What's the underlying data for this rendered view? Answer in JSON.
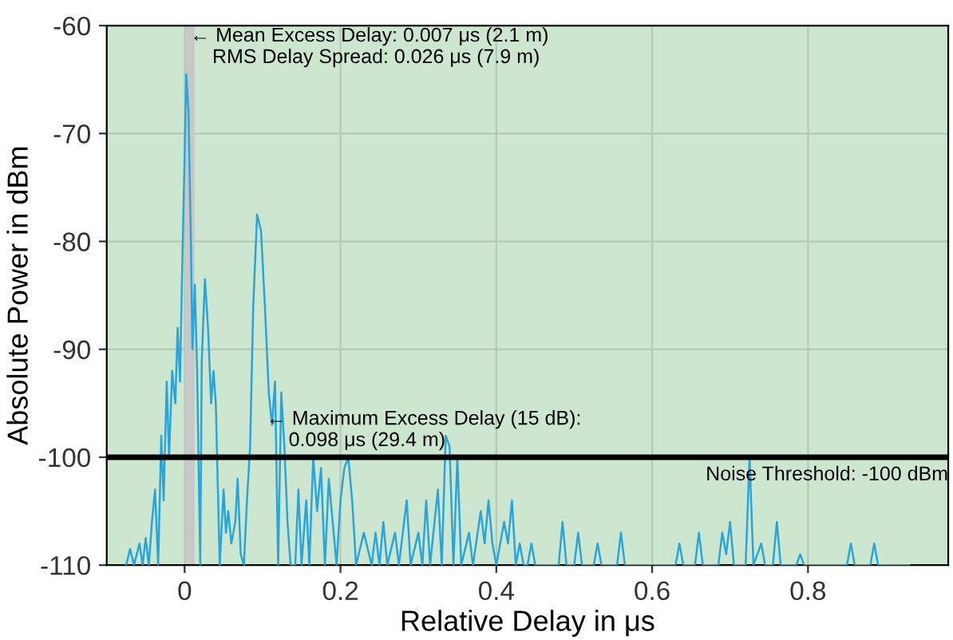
{
  "chart_data": {
    "type": "line",
    "xlabel": "Relative Delay in μs",
    "ylabel": "Absolute Power in dBm",
    "xlim": [
      -0.1,
      0.98
    ],
    "ylim": [
      -110,
      -60
    ],
    "xticks": [
      0,
      0.2,
      0.4,
      0.6,
      0.8
    ],
    "yticks": [
      -110,
      -100,
      -90,
      -80,
      -70,
      -60
    ],
    "grid": true,
    "legend": false,
    "marker": "none",
    "line_style": "solid",
    "ref_lines": [
      {
        "axis": "x",
        "value": 0.007,
        "color": "#c8c8c8"
      },
      {
        "axis": "y",
        "value": -100,
        "label": "Noise Threshold: -100 dBm",
        "color": "#000000"
      }
    ],
    "annotations": [
      {
        "text": "← Mean Excess Delay: 0.007 μs (2.1 m)\n    RMS Delay Spread: 0.026 μs (7.9 m)",
        "x": 0.007,
        "y": -62
      },
      {
        "text": "← Maximum Excess Delay (15 dB):\n    0.098 μs (29.4 m)",
        "x": 0.105,
        "y": -97.5
      }
    ],
    "series": [
      {
        "color": "#29a5dc",
        "x": [
          -0.075,
          -0.07,
          -0.065,
          -0.058,
          -0.054,
          -0.05,
          -0.046,
          -0.042,
          -0.038,
          -0.034,
          -0.03,
          -0.027,
          -0.023,
          -0.02,
          -0.016,
          -0.012,
          -0.009,
          -0.006,
          -0.003,
          0.0,
          0.002,
          0.005,
          0.008,
          0.01,
          0.013,
          0.016,
          0.02,
          0.022,
          0.026,
          0.03,
          0.034,
          0.037,
          0.04,
          0.045,
          0.05,
          0.053,
          0.056,
          0.06,
          0.065,
          0.068,
          0.072,
          0.076,
          0.08,
          0.084,
          0.088,
          0.093,
          0.098,
          0.103,
          0.108,
          0.112,
          0.116,
          0.12,
          0.124,
          0.128,
          0.132,
          0.136,
          0.142,
          0.146,
          0.15,
          0.156,
          0.16,
          0.165,
          0.17,
          0.175,
          0.18,
          0.185,
          0.19,
          0.195,
          0.2,
          0.205,
          0.21,
          0.215,
          0.22,
          0.23,
          0.24,
          0.245,
          0.25,
          0.255,
          0.26,
          0.27,
          0.275,
          0.285,
          0.29,
          0.3,
          0.305,
          0.31,
          0.315,
          0.325,
          0.33,
          0.335,
          0.34,
          0.345,
          0.35,
          0.355,
          0.365,
          0.37,
          0.38,
          0.385,
          0.39,
          0.395,
          0.4,
          0.41,
          0.415,
          0.42,
          0.425,
          0.43,
          0.435,
          0.44,
          0.445,
          0.45,
          0.48,
          0.485,
          0.49,
          0.5,
          0.505,
          0.51,
          0.525,
          0.53,
          0.535,
          0.555,
          0.56,
          0.565,
          0.63,
          0.635,
          0.64,
          0.655,
          0.66,
          0.665,
          0.685,
          0.69,
          0.695,
          0.7,
          0.705,
          0.72,
          0.725,
          0.73,
          0.74,
          0.745,
          0.755,
          0.76,
          0.765,
          0.785,
          0.79,
          0.795,
          0.85,
          0.855,
          0.86,
          0.88,
          0.885,
          0.89,
          0.93
        ],
        "values": [
          -110,
          -108.5,
          -110,
          -108,
          -110,
          -107.5,
          -110,
          -106,
          -103,
          -110,
          -98,
          -104,
          -93,
          -100,
          -92,
          -95,
          -88,
          -93,
          -82,
          -72,
          -64.5,
          -68,
          -80,
          -90,
          -84,
          -92,
          -110,
          -91,
          -83.5,
          -88,
          -95,
          -92,
          -95,
          -110,
          -103,
          -107,
          -105,
          -108,
          -106,
          -102,
          -109,
          -110,
          -104,
          -99,
          -86,
          -77.5,
          -79,
          -86,
          -94,
          -97,
          -93,
          -110,
          -94,
          -99,
          -106,
          -110,
          -110,
          -103,
          -110,
          -104,
          -110,
          -100,
          -105,
          -101,
          -110,
          -102,
          -106,
          -110,
          -104,
          -101,
          -100,
          -104,
          -110,
          -107,
          -110,
          -107,
          -110,
          -106,
          -110,
          -107,
          -110,
          -104,
          -110,
          -107,
          -110,
          -104,
          -110,
          -103,
          -110,
          -98,
          -99,
          -110,
          -100,
          -110,
          -107,
          -110,
          -105,
          -108,
          -104,
          -108,
          -110,
          -106,
          -108,
          -104,
          -110,
          -108,
          -110,
          -110,
          -108,
          -110,
          -110,
          -106,
          -110,
          -110,
          -107,
          -110,
          -110,
          -108,
          -110,
          -110,
          -107,
          -110,
          -110,
          -108,
          -110,
          -110,
          -107,
          -110,
          -110,
          -107,
          -109,
          -106,
          -110,
          -110,
          -100,
          -110,
          -108,
          -110,
          -110,
          -106,
          -110,
          -110,
          -109,
          -110,
          -110,
          -108,
          -110,
          -110,
          -108,
          -110,
          -110
        ]
      }
    ]
  }
}
